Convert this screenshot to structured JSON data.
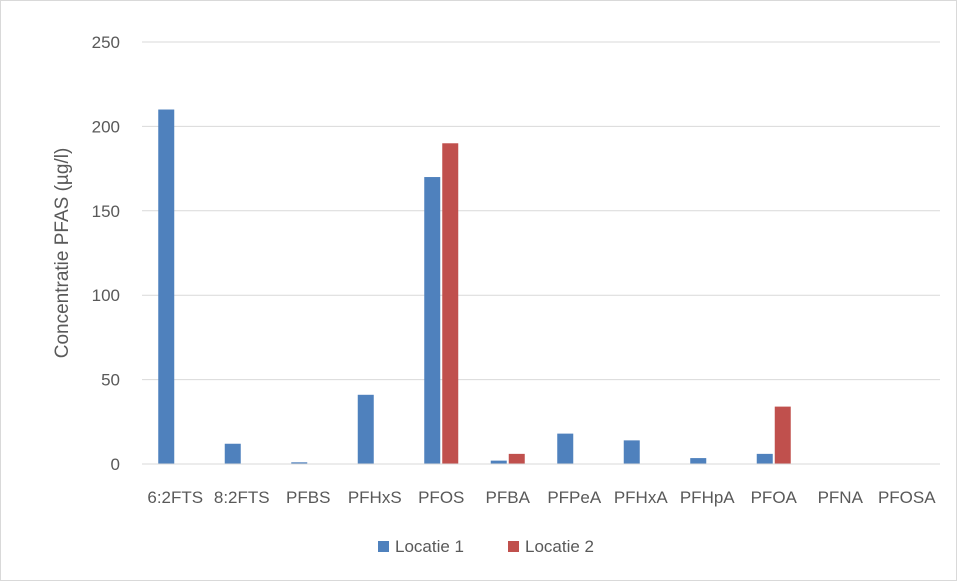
{
  "chart_data": {
    "type": "bar",
    "title": "",
    "xlabel": "",
    "ylabel": "Concentratie PFAS (µg/l)",
    "ylim": [
      0,
      250
    ],
    "yticks": [
      0,
      50,
      100,
      150,
      200,
      250
    ],
    "grid": true,
    "legend_position": "bottom",
    "categories": [
      "6:2FTS",
      "8:2FTS",
      "PFBS",
      "PFHxS",
      "PFOS",
      "PFBA",
      "PFPeA",
      "PFHxA",
      "PFHpA",
      "PFOA",
      "PFNA",
      "PFOSA"
    ],
    "series": [
      {
        "name": "Locatie 1",
        "color": "#4f81bd",
        "values": [
          210,
          12,
          1,
          41,
          170,
          2,
          18,
          14,
          3.5,
          6,
          0,
          0
        ]
      },
      {
        "name": "Locatie 2",
        "color": "#c0504d",
        "values": [
          0,
          0,
          0,
          0,
          190,
          6,
          0,
          0,
          0,
          34,
          0,
          0
        ]
      }
    ]
  }
}
